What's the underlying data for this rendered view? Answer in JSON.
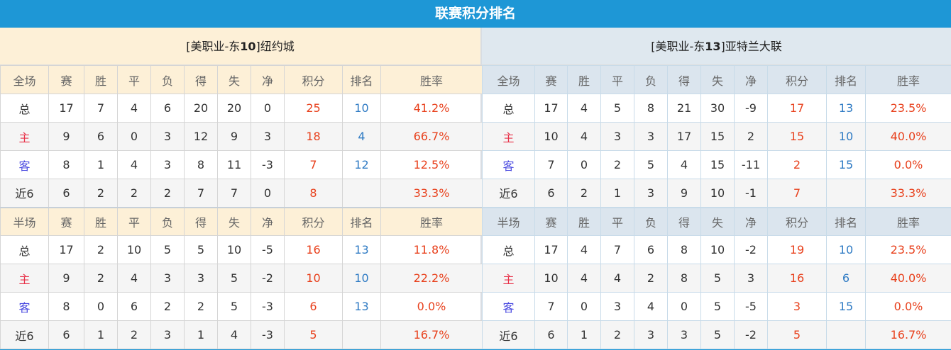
{
  "title": "联赛积分排名",
  "colors": {
    "title_bar": "#1e97d6",
    "points": "#e8401c",
    "rank": "#2f7bc4",
    "home": "#e8334a",
    "away": "#4a4ae0"
  },
  "headers_full": [
    "全场",
    "赛",
    "胜",
    "平",
    "负",
    "得",
    "失",
    "净",
    "积分",
    "排名",
    "胜率"
  ],
  "headers_half": [
    "半场",
    "赛",
    "胜",
    "平",
    "负",
    "得",
    "失",
    "净",
    "积分",
    "排名",
    "胜率"
  ],
  "teams": [
    {
      "prefix": "[美职业-东",
      "rank": "10",
      "suffix": "]纽约城",
      "full": [
        [
          "总",
          "17",
          "7",
          "4",
          "6",
          "20",
          "20",
          "0",
          "25",
          "10",
          "41.2%"
        ],
        [
          "主",
          "9",
          "6",
          "0",
          "3",
          "12",
          "9",
          "3",
          "18",
          "4",
          "66.7%"
        ],
        [
          "客",
          "8",
          "1",
          "4",
          "3",
          "8",
          "11",
          "-3",
          "7",
          "12",
          "12.5%"
        ],
        [
          "近6",
          "6",
          "2",
          "2",
          "2",
          "7",
          "7",
          "0",
          "8",
          "",
          "33.3%"
        ]
      ],
      "half": [
        [
          "总",
          "17",
          "2",
          "10",
          "5",
          "5",
          "10",
          "-5",
          "16",
          "13",
          "11.8%"
        ],
        [
          "主",
          "9",
          "2",
          "4",
          "3",
          "3",
          "5",
          "-2",
          "10",
          "10",
          "22.2%"
        ],
        [
          "客",
          "8",
          "0",
          "6",
          "2",
          "2",
          "5",
          "-3",
          "6",
          "13",
          "0.0%"
        ],
        [
          "近6",
          "6",
          "1",
          "2",
          "3",
          "1",
          "4",
          "-3",
          "5",
          "",
          "16.7%"
        ]
      ]
    },
    {
      "prefix": "[美职业-东",
      "rank": "13",
      "suffix": "]亚特兰大联",
      "full": [
        [
          "总",
          "17",
          "4",
          "5",
          "8",
          "21",
          "30",
          "-9",
          "17",
          "13",
          "23.5%"
        ],
        [
          "主",
          "10",
          "4",
          "3",
          "3",
          "17",
          "15",
          "2",
          "15",
          "10",
          "40.0%"
        ],
        [
          "客",
          "7",
          "0",
          "2",
          "5",
          "4",
          "15",
          "-11",
          "2",
          "15",
          "0.0%"
        ],
        [
          "近6",
          "6",
          "2",
          "1",
          "3",
          "9",
          "10",
          "-1",
          "7",
          "",
          "33.3%"
        ]
      ],
      "half": [
        [
          "总",
          "17",
          "4",
          "7",
          "6",
          "8",
          "10",
          "-2",
          "19",
          "10",
          "23.5%"
        ],
        [
          "主",
          "10",
          "4",
          "4",
          "2",
          "8",
          "5",
          "3",
          "16",
          "6",
          "40.0%"
        ],
        [
          "客",
          "7",
          "0",
          "3",
          "4",
          "0",
          "5",
          "-5",
          "3",
          "15",
          "0.0%"
        ],
        [
          "近6",
          "6",
          "1",
          "2",
          "3",
          "3",
          "5",
          "-2",
          "5",
          "",
          "16.7%"
        ]
      ]
    }
  ]
}
